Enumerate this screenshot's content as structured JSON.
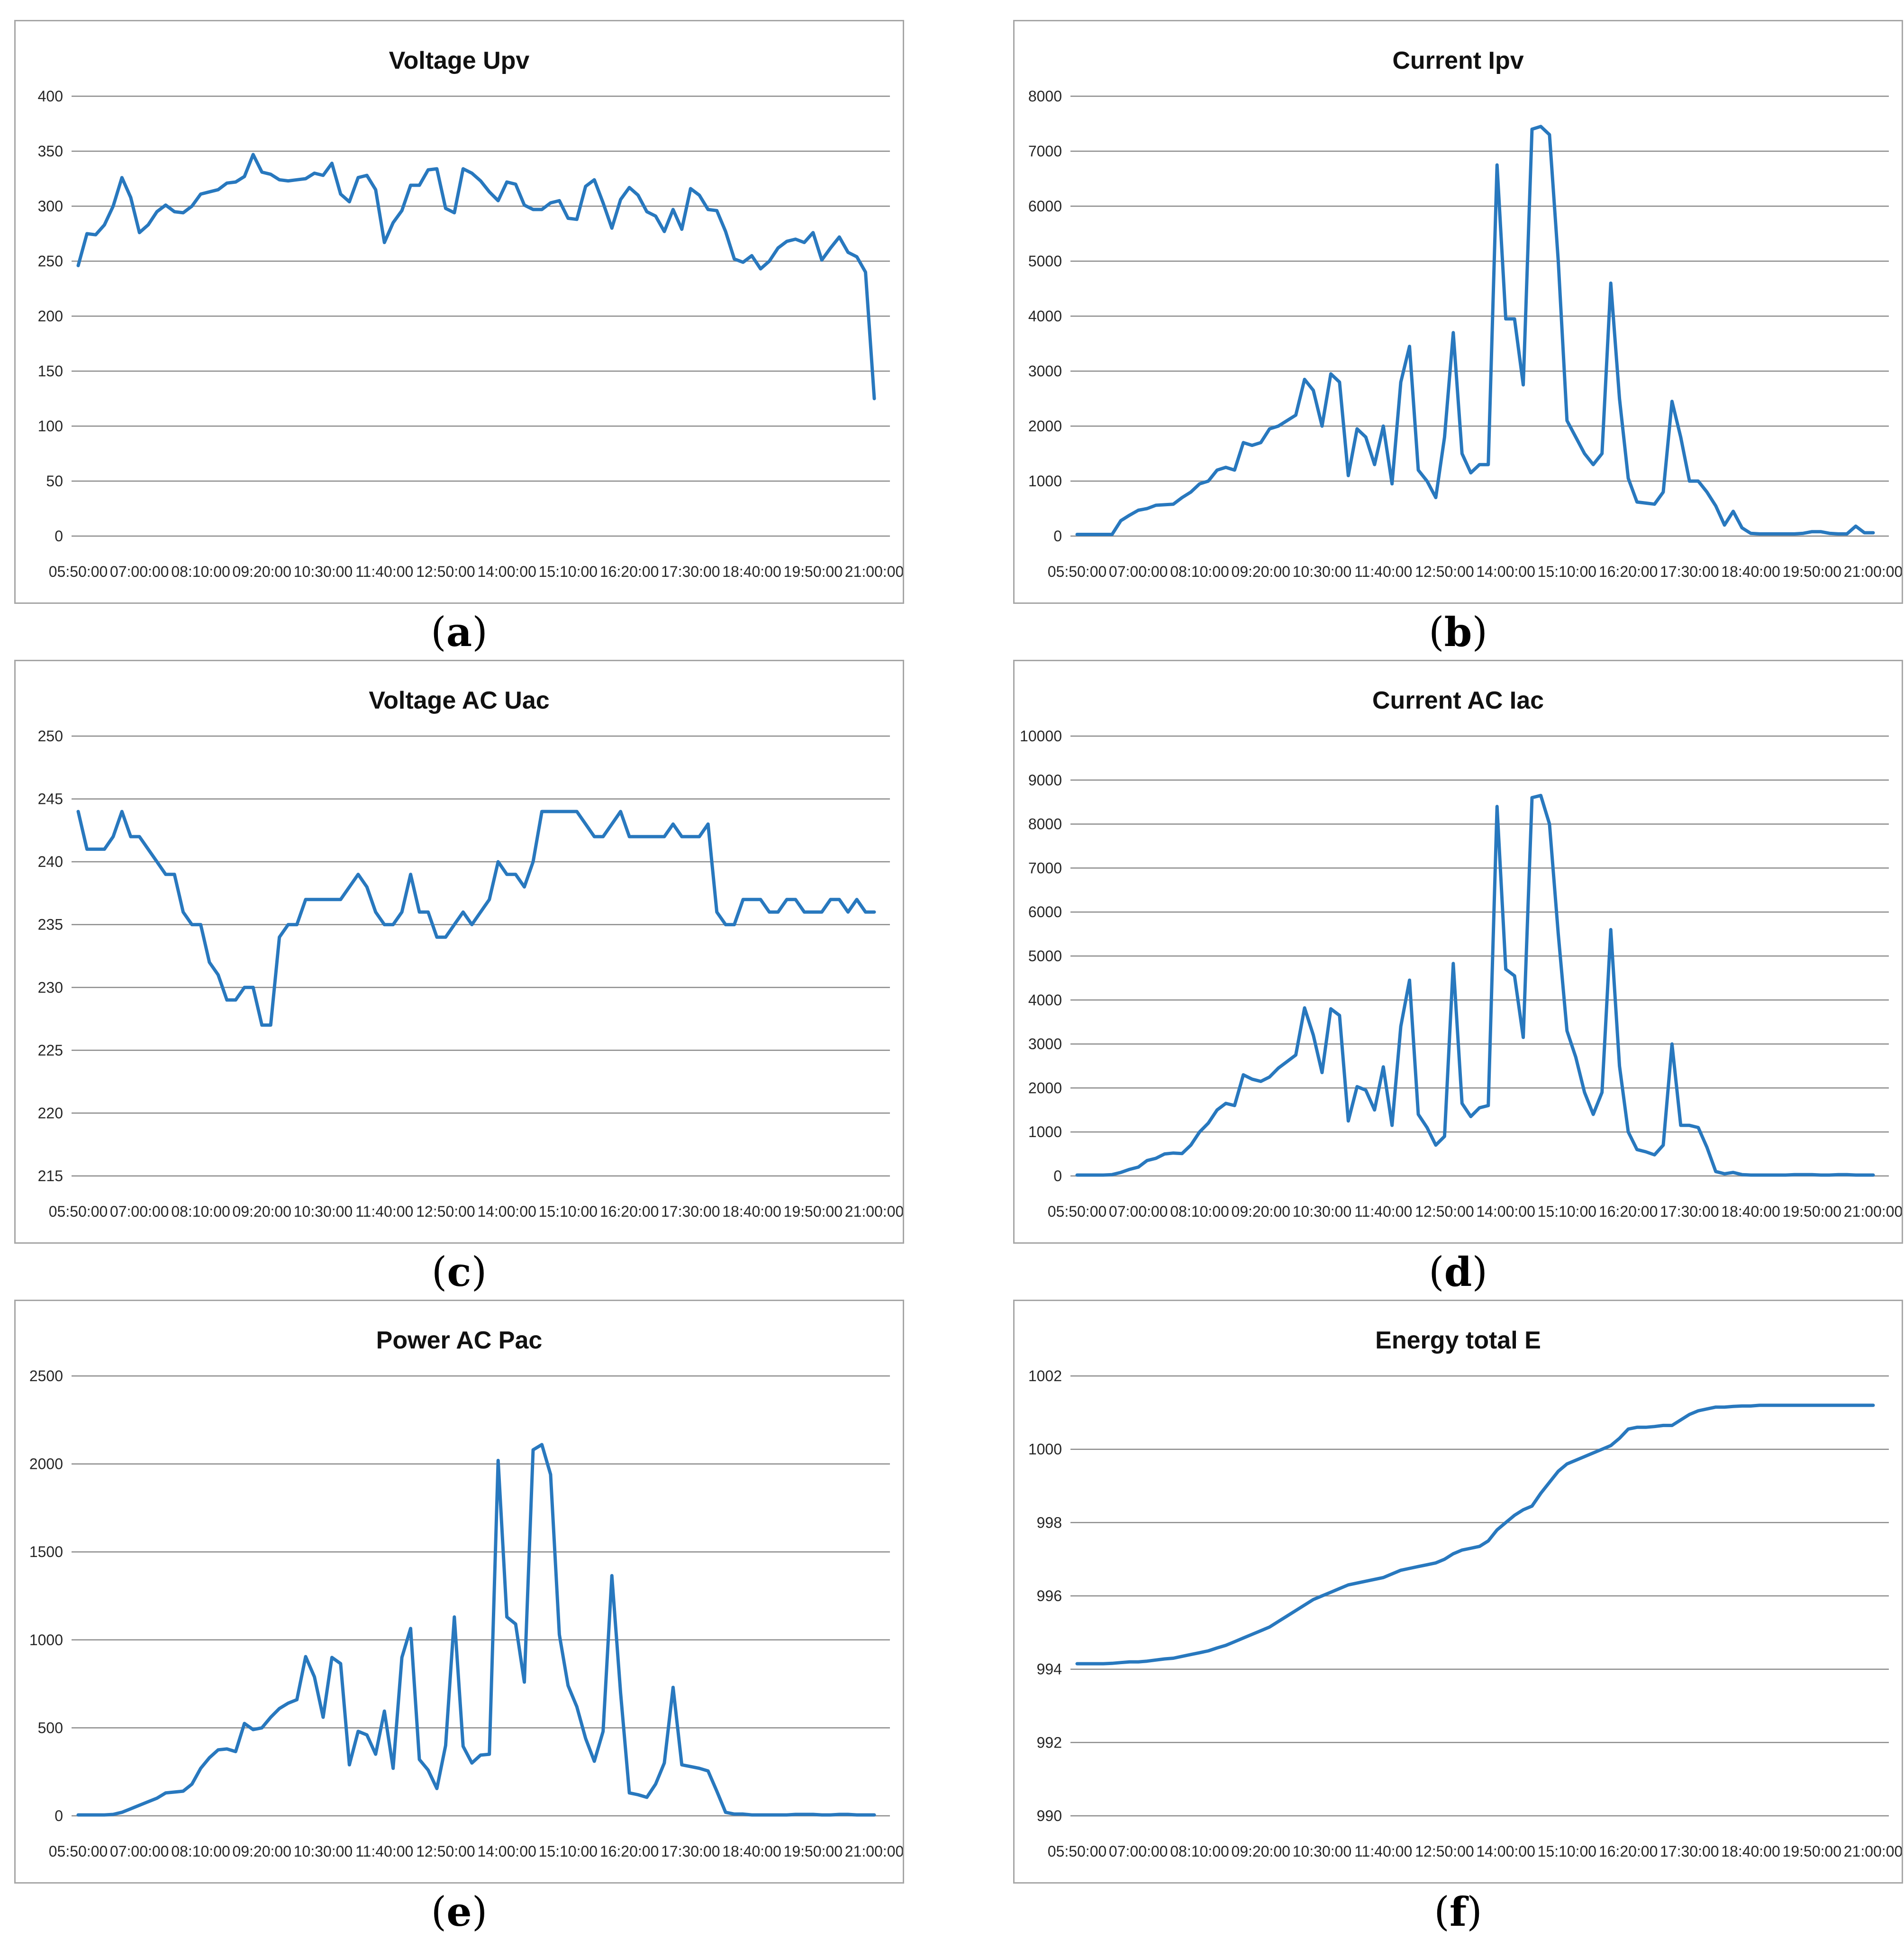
{
  "figure": {
    "line_color": "#2878BE",
    "grid_color": "#8c8c8c",
    "border_color": "#a6a6a6",
    "background": "#ffffff",
    "caption_format": {
      "open": "(",
      "close": ")"
    },
    "x_tick_labels": [
      "05:50:00",
      "07:00:00",
      "08:10:00",
      "09:20:00",
      "10:30:00",
      "11:40:00",
      "12:50:00",
      "14:00:00",
      "15:10:00",
      "16:20:00",
      "17:30:00",
      "18:40:00",
      "19:50:00",
      "21:00:00"
    ]
  },
  "chart_data": [
    {
      "id": "a",
      "type": "line",
      "title": "Voltage Upv",
      "caption": "(a)",
      "caption_letter": "a",
      "xlabel": "",
      "ylabel": "",
      "legend": "none",
      "grid": true,
      "x_start": "05:50:00",
      "x_end": "21:00:00",
      "sample_interval_minutes": 10,
      "x_labels": [
        "05:50:00",
        "07:00:00",
        "08:10:00",
        "09:20:00",
        "10:30:00",
        "11:40:00",
        "12:50:00",
        "14:00:00",
        "15:10:00",
        "16:20:00",
        "17:30:00",
        "18:40:00",
        "19:50:00",
        "21:00:00"
      ],
      "ylim": [
        0,
        400
      ],
      "ytick_step": 50,
      "series": [
        {
          "name": "Voltage Upv",
          "values": [
            246,
            275,
            274,
            283,
            300,
            326,
            308,
            276,
            283,
            295,
            301,
            295,
            294,
            300,
            311,
            313,
            315,
            321,
            322,
            327,
            347,
            331,
            329,
            324,
            323,
            324,
            325,
            330,
            328,
            339,
            311,
            304,
            326,
            328,
            315,
            267,
            285,
            296,
            319,
            319,
            333,
            334,
            298,
            294,
            334,
            330,
            323,
            313,
            305,
            322,
            320,
            301,
            297,
            297,
            303,
            305,
            289,
            288,
            318,
            324,
            303,
            280,
            306,
            317,
            310,
            295,
            291,
            277,
            297,
            279,
            316,
            310,
            297,
            296,
            277,
            252,
            249,
            255,
            243,
            250,
            262,
            268,
            270,
            267,
            276,
            251,
            262,
            272,
            258,
            254,
            240,
            125
          ]
        }
      ]
    },
    {
      "id": "b",
      "type": "line",
      "title": "Current Ipv",
      "caption": "(b)",
      "caption_letter": "b",
      "xlabel": "",
      "ylabel": "",
      "legend": "none",
      "grid": true,
      "x_start": "05:50:00",
      "x_end": "21:00:00",
      "sample_interval_minutes": 10,
      "x_labels": [
        "05:50:00",
        "07:00:00",
        "08:10:00",
        "09:20:00",
        "10:30:00",
        "11:40:00",
        "12:50:00",
        "14:00:00",
        "15:10:00",
        "16:20:00",
        "17:30:00",
        "18:40:00",
        "19:50:00",
        "21:00:00"
      ],
      "ylim": [
        0,
        8000
      ],
      "ytick_step": 1000,
      "series": [
        {
          "name": "Current Ipv",
          "values": [
            30,
            30,
            30,
            30,
            30,
            280,
            380,
            470,
            500,
            560,
            570,
            580,
            700,
            800,
            950,
            1000,
            1200,
            1250,
            1200,
            1700,
            1650,
            1700,
            1950,
            2000,
            2100,
            2200,
            2850,
            2650,
            2000,
            2950,
            2800,
            1100,
            1950,
            1800,
            1300,
            2000,
            950,
            2800,
            3450,
            1200,
            1000,
            700,
            1800,
            3700,
            1500,
            1150,
            1300,
            1300,
            6750,
            3950,
            3950,
            2750,
            7400,
            7450,
            7300,
            5000,
            2100,
            1800,
            1500,
            1300,
            1500,
            4600,
            2500,
            1050,
            620,
            600,
            580,
            800,
            2450,
            1800,
            1000,
            1000,
            800,
            550,
            200,
            450,
            150,
            50,
            40,
            40,
            40,
            40,
            40,
            50,
            80,
            80,
            50,
            40,
            40,
            180,
            60,
            60
          ]
        }
      ]
    },
    {
      "id": "c",
      "type": "line",
      "title": "Voltage AC Uac",
      "caption": "(c)",
      "caption_letter": "c",
      "xlabel": "",
      "ylabel": "",
      "legend": "none",
      "grid": true,
      "x_start": "05:50:00",
      "x_end": "21:00:00",
      "sample_interval_minutes": 10,
      "x_labels": [
        "05:50:00",
        "07:00:00",
        "08:10:00",
        "09:20:00",
        "10:30:00",
        "11:40:00",
        "12:50:00",
        "14:00:00",
        "15:10:00",
        "16:20:00",
        "17:30:00",
        "18:40:00",
        "19:50:00",
        "21:00:00"
      ],
      "ylim": [
        215,
        250
      ],
      "ytick_step": 5,
      "series": [
        {
          "name": "Voltage AC Uac",
          "values": [
            244,
            241,
            241,
            241,
            242,
            244,
            242,
            242,
            241,
            240,
            239,
            239,
            236,
            235,
            235,
            232,
            231,
            229,
            229,
            230,
            230,
            227,
            227,
            234,
            235,
            235,
            237,
            237,
            237,
            237,
            237,
            238,
            239,
            238,
            236,
            235,
            235,
            236,
            239,
            236,
            236,
            234,
            234,
            235,
            236,
            235,
            236,
            237,
            240,
            239,
            239,
            238,
            240,
            244,
            244,
            244,
            244,
            244,
            243,
            242,
            242,
            243,
            244,
            242,
            242,
            242,
            242,
            242,
            243,
            242,
            242,
            242,
            243,
            236,
            235,
            235,
            237,
            237,
            237,
            236,
            236,
            237,
            237,
            236,
            236,
            236,
            237,
            237,
            236,
            237,
            236,
            236
          ]
        }
      ]
    },
    {
      "id": "d",
      "type": "line",
      "title": "Current AC Iac",
      "caption": "(d)",
      "caption_letter": "d",
      "xlabel": "",
      "ylabel": "",
      "legend": "none",
      "grid": true,
      "x_start": "05:50:00",
      "x_end": "21:00:00",
      "sample_interval_minutes": 10,
      "x_labels": [
        "05:50:00",
        "07:00:00",
        "08:10:00",
        "09:20:00",
        "10:30:00",
        "11:40:00",
        "12:50:00",
        "14:00:00",
        "15:10:00",
        "16:20:00",
        "17:30:00",
        "18:40:00",
        "19:50:00",
        "21:00:00"
      ],
      "ylim": [
        0,
        10000
      ],
      "ytick_step": 1000,
      "series": [
        {
          "name": "Current AC Iac",
          "values": [
            20,
            20,
            20,
            20,
            30,
            80,
            150,
            200,
            350,
            400,
            500,
            520,
            510,
            700,
            1000,
            1200,
            1500,
            1650,
            1600,
            2300,
            2200,
            2150,
            2250,
            2450,
            2600,
            2750,
            3820,
            3200,
            2350,
            3800,
            3650,
            1250,
            2030,
            1950,
            1500,
            2480,
            1150,
            3400,
            4450,
            1400,
            1100,
            700,
            900,
            4830,
            1650,
            1350,
            1550,
            1600,
            8400,
            4700,
            4550,
            3150,
            8600,
            8650,
            8000,
            5500,
            3300,
            2700,
            1900,
            1400,
            1900,
            5600,
            2500,
            1000,
            600,
            550,
            480,
            700,
            3000,
            1150,
            1150,
            1100,
            650,
            100,
            50,
            80,
            30,
            20,
            20,
            20,
            20,
            20,
            30,
            30,
            30,
            20,
            20,
            30,
            30,
            20,
            20,
            20
          ]
        }
      ]
    },
    {
      "id": "e",
      "type": "line",
      "title": "Power AC Pac",
      "caption": "(e)",
      "caption_letter": "e",
      "xlabel": "",
      "ylabel": "",
      "legend": "none",
      "grid": true,
      "x_start": "05:50:00",
      "x_end": "21:00:00",
      "sample_interval_minutes": 10,
      "x_labels": [
        "05:50:00",
        "07:00:00",
        "08:10:00",
        "09:20:00",
        "10:30:00",
        "11:40:00",
        "12:50:00",
        "14:00:00",
        "15:10:00",
        "16:20:00",
        "17:30:00",
        "18:40:00",
        "19:50:00",
        "21:00:00"
      ],
      "ylim": [
        0,
        2500
      ],
      "ytick_step": 500,
      "series": [
        {
          "name": "Power AC Pac",
          "values": [
            5,
            5,
            5,
            5,
            8,
            20,
            40,
            60,
            80,
            100,
            130,
            135,
            140,
            180,
            270,
            330,
            375,
            380,
            365,
            525,
            490,
            500,
            560,
            610,
            640,
            660,
            905,
            790,
            560,
            900,
            865,
            290,
            480,
            460,
            350,
            595,
            270,
            900,
            1065,
            320,
            260,
            155,
            400,
            1130,
            395,
            300,
            345,
            350,
            2020,
            1130,
            1090,
            760,
            2080,
            2110,
            1940,
            1030,
            740,
            620,
            440,
            310,
            480,
            1365,
            700,
            130,
            120,
            105,
            180,
            300,
            730,
            290,
            280,
            270,
            255,
            140,
            20,
            10,
            10,
            5,
            5,
            5,
            5,
            5,
            8,
            8,
            8,
            5,
            5,
            8,
            8,
            5,
            5,
            5
          ]
        }
      ]
    },
    {
      "id": "f",
      "type": "line",
      "title": "Energy total E",
      "caption": "(f)",
      "caption_letter": "f",
      "xlabel": "",
      "ylabel": "",
      "legend": "none",
      "grid": true,
      "x_start": "05:50:00",
      "x_end": "21:00:00",
      "sample_interval_minutes": 10,
      "x_labels": [
        "05:50:00",
        "07:00:00",
        "08:10:00",
        "09:20:00",
        "10:30:00",
        "11:40:00",
        "12:50:00",
        "14:00:00",
        "15:10:00",
        "16:20:00",
        "17:30:00",
        "18:40:00",
        "19:50:00",
        "21:00:00"
      ],
      "ylim": [
        990,
        1002
      ],
      "ytick_step": 2,
      "series": [
        {
          "name": "Energy total E",
          "values": [
            994.15,
            994.15,
            994.15,
            994.15,
            994.16,
            994.18,
            994.2,
            994.2,
            994.22,
            994.25,
            994.28,
            994.3,
            994.35,
            994.4,
            994.45,
            994.5,
            994.58,
            994.65,
            994.75,
            994.85,
            994.95,
            995.05,
            995.15,
            995.3,
            995.45,
            995.6,
            995.75,
            995.9,
            996.0,
            996.1,
            996.2,
            996.3,
            996.35,
            996.4,
            996.45,
            996.5,
            996.6,
            996.7,
            996.75,
            996.8,
            996.85,
            996.9,
            997.0,
            997.15,
            997.25,
            997.3,
            997.35,
            997.5,
            997.8,
            998.0,
            998.2,
            998.35,
            998.45,
            998.8,
            999.1,
            999.4,
            999.6,
            999.7,
            999.8,
            999.9,
            1000.0,
            1000.1,
            1000.3,
            1000.55,
            1000.6,
            1000.6,
            1000.62,
            1000.65,
            1000.65,
            1000.8,
            1000.95,
            1001.05,
            1001.1,
            1001.15,
            1001.15,
            1001.17,
            1001.18,
            1001.18,
            1001.2,
            1001.2,
            1001.2,
            1001.2,
            1001.2,
            1001.2,
            1001.2,
            1001.2,
            1001.2,
            1001.2,
            1001.2,
            1001.2,
            1001.2,
            1001.2
          ]
        }
      ]
    }
  ]
}
